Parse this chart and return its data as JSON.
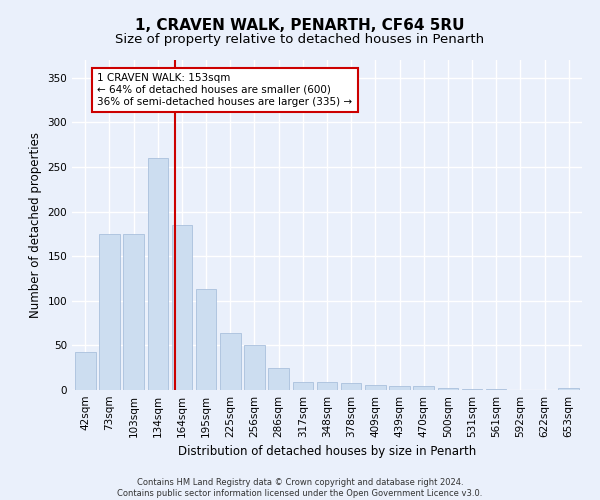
{
  "title": "1, CRAVEN WALK, PENARTH, CF64 5RU",
  "subtitle": "Size of property relative to detached houses in Penarth",
  "xlabel": "Distribution of detached houses by size in Penarth",
  "ylabel": "Number of detached properties",
  "categories": [
    "42sqm",
    "73sqm",
    "103sqm",
    "134sqm",
    "164sqm",
    "195sqm",
    "225sqm",
    "256sqm",
    "286sqm",
    "317sqm",
    "348sqm",
    "378sqm",
    "409sqm",
    "439sqm",
    "470sqm",
    "500sqm",
    "531sqm",
    "561sqm",
    "592sqm",
    "622sqm",
    "653sqm"
  ],
  "values": [
    43,
    175,
    175,
    260,
    185,
    113,
    64,
    50,
    25,
    9,
    9,
    8,
    6,
    5,
    4,
    2,
    1,
    1,
    0,
    0,
    2
  ],
  "bar_color": "#ccddf0",
  "bar_edge_color": "#aac0dd",
  "vline_x": 3.72,
  "vline_color": "#cc0000",
  "annotation_text": "1 CRAVEN WALK: 153sqm\n← 64% of detached houses are smaller (600)\n36% of semi-detached houses are larger (335) →",
  "annotation_box_color": "#ffffff",
  "annotation_box_edge": "#cc0000",
  "ylim": [
    0,
    370
  ],
  "yticks": [
    0,
    50,
    100,
    150,
    200,
    250,
    300,
    350
  ],
  "footer_text": "Contains HM Land Registry data © Crown copyright and database right 2024.\nContains public sector information licensed under the Open Government Licence v3.0.",
  "bg_color": "#eaf0fb",
  "grid_color": "#ffffff",
  "title_fontsize": 11,
  "subtitle_fontsize": 9.5,
  "axis_label_fontsize": 8.5,
  "tick_fontsize": 7.5,
  "annotation_fontsize": 7.5,
  "footer_fontsize": 6
}
